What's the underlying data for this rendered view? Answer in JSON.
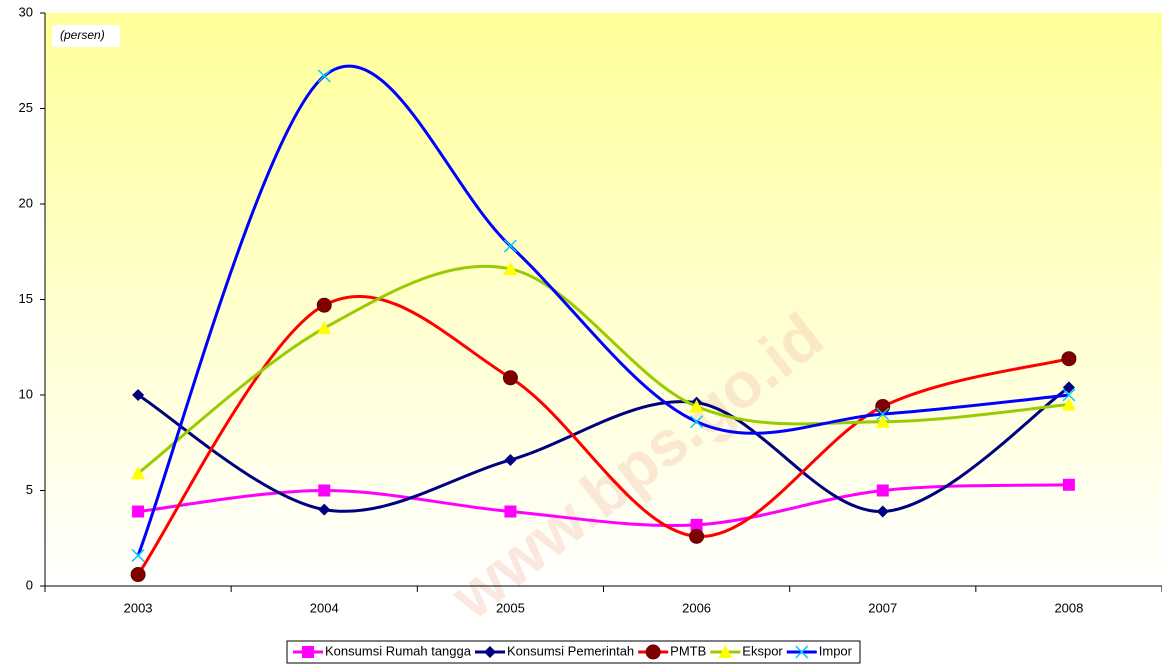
{
  "chart_data": {
    "type": "line",
    "annotation": "(persen)",
    "watermark": "www.bps.go.id",
    "categories": [
      "2003",
      "2004",
      "2005",
      "2006",
      "2007",
      "2008"
    ],
    "series": [
      {
        "name": "Konsumsi Rumah tangga",
        "color": "#ff00ff",
        "marker_color": "#ff00ff",
        "marker": "square",
        "values": [
          3.9,
          5.0,
          3.9,
          3.2,
          5.0,
          5.3
        ]
      },
      {
        "name": "Konsumsi Pemerintah",
        "color": "#000080",
        "marker_color": "#000080",
        "marker": "diamond",
        "values": [
          10.0,
          4.0,
          6.6,
          9.6,
          3.9,
          10.4
        ]
      },
      {
        "name": "PMTB",
        "color": "#ff0000",
        "marker_color": "#800000",
        "marker": "circle",
        "values": [
          0.6,
          14.7,
          10.9,
          2.6,
          9.4,
          11.9
        ]
      },
      {
        "name": "Ekspor",
        "color": "#99cc00",
        "marker_color": "#ffff00",
        "marker": "triangle",
        "values": [
          5.9,
          13.5,
          16.6,
          9.4,
          8.6,
          9.5
        ]
      },
      {
        "name": "Impor",
        "color": "#0000ff",
        "marker_color": "#00ccff",
        "marker": "x",
        "values": [
          1.6,
          26.7,
          17.8,
          8.6,
          9.0,
          10.0
        ]
      }
    ],
    "ylim": [
      0,
      30
    ],
    "yticks": [
      0,
      5,
      10,
      15,
      20,
      25,
      30
    ],
    "grid": false,
    "smooth": true,
    "legend": "bottom"
  }
}
